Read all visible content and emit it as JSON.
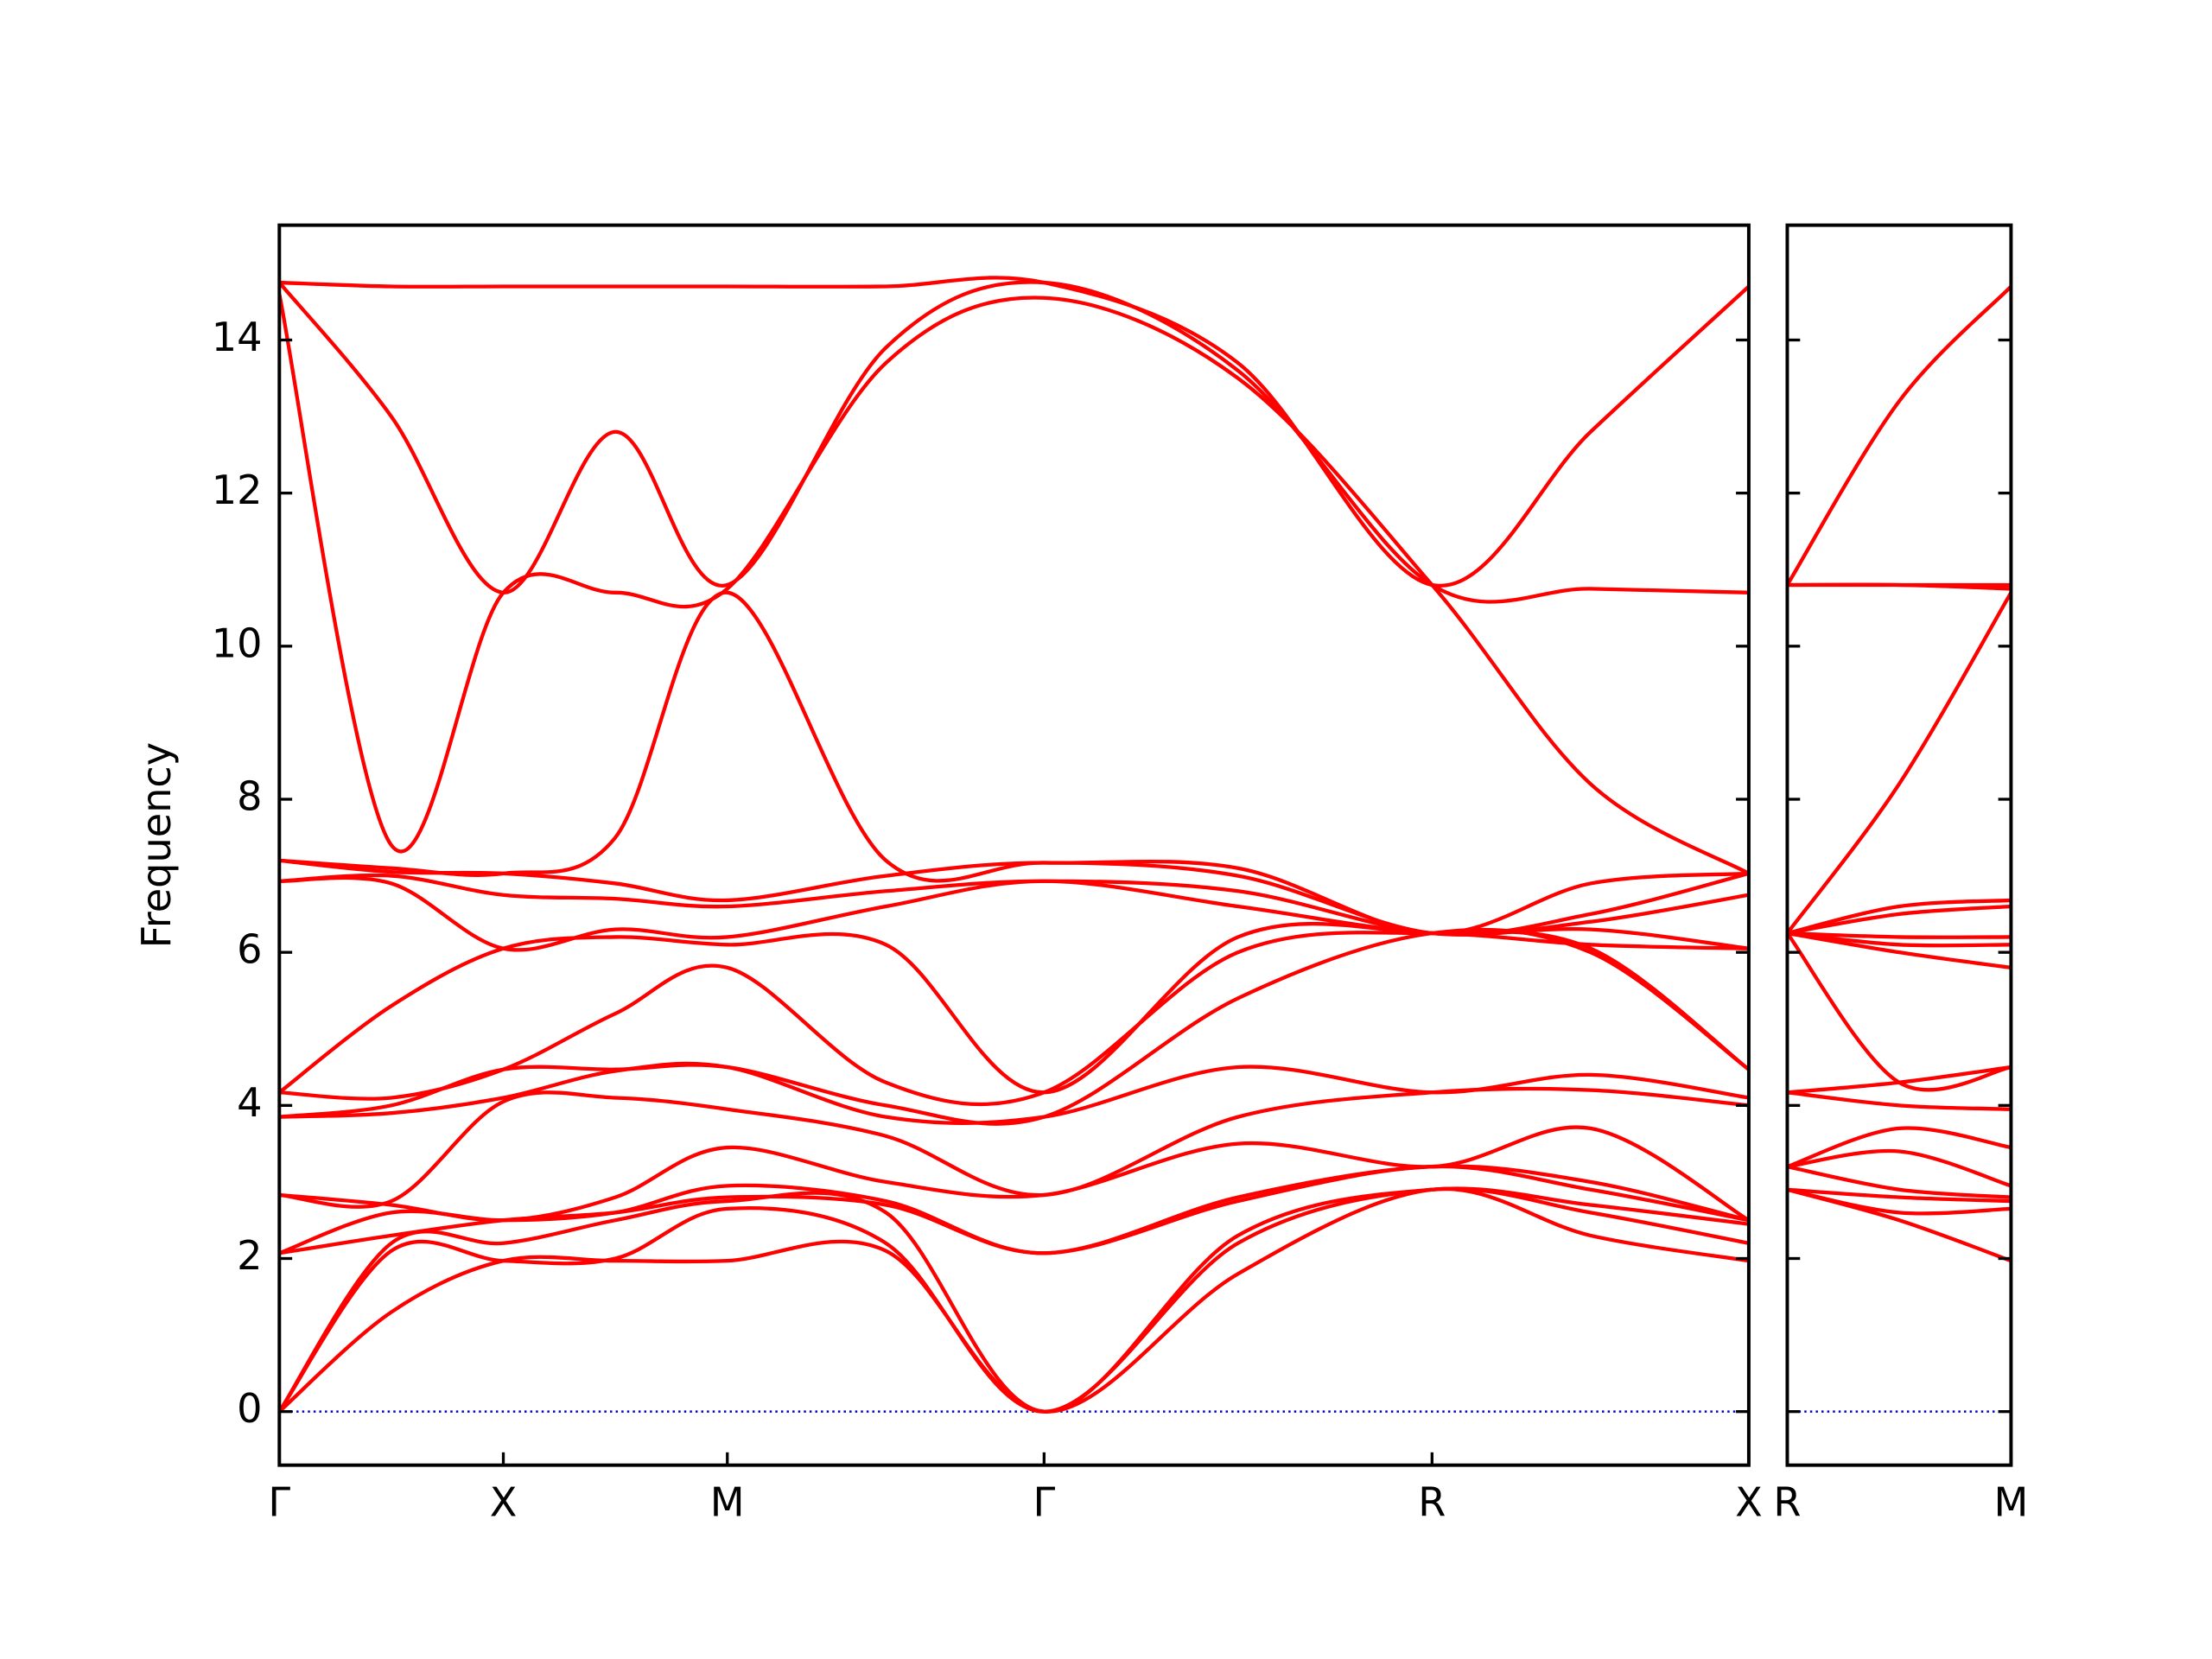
{
  "chart_data": [
    {
      "type": "line",
      "y_label": "Frequency",
      "color": "#ff0000",
      "x": [
        0,
        0.25,
        0.5,
        0.75,
        1.0,
        1.354,
        1.7071,
        2.14,
        2.5731,
        2.927,
        3.2802
      ],
      "xlim": [
        0,
        3.2802
      ],
      "xticks": [
        {
          "value": 0,
          "label": "Γ"
        },
        {
          "value": 0.5,
          "label": "X"
        },
        {
          "value": 1.0,
          "label": "M"
        },
        {
          "value": 1.7071,
          "label": "Γ"
        },
        {
          "value": 2.5731,
          "label": "R"
        },
        {
          "value": 3.2802,
          "label": "X"
        }
      ],
      "ylim": [
        -0.7,
        15.5
      ],
      "yticks": [
        0,
        2,
        4,
        6,
        8,
        10,
        12,
        14
      ],
      "ytick_labels": true,
      "hlines": [
        0
      ],
      "hline_color": "#0000cc",
      "series": [
        {
          "values": [
            0,
            1.3,
            1.97,
            1.97,
            1.97,
            2.1,
            0,
            1.8,
            2.9,
            2.3,
            1.97
          ]
        },
        {
          "values": [
            0,
            2.1,
            1.97,
            2.0,
            2.65,
            2.2,
            0,
            2.2,
            2.9,
            2.6,
            2.2
          ]
        },
        {
          "values": [
            0,
            2.2,
            2.2,
            2.5,
            2.75,
            2.6,
            0,
            2.3,
            2.9,
            2.7,
            2.45
          ]
        },
        {
          "values": [
            2.07,
            2.3,
            2.5,
            2.6,
            2.8,
            2.7,
            2.07,
            2.75,
            3.2,
            2.9,
            2.5
          ]
        },
        {
          "values": [
            2.07,
            2.6,
            2.5,
            2.6,
            2.95,
            2.75,
            2.07,
            2.8,
            3.2,
            3.0,
            2.5
          ]
        },
        {
          "values": [
            2.83,
            2.7,
            2.5,
            2.8,
            3.45,
            3.0,
            2.83,
            3.5,
            3.2,
            3.7,
            2.5
          ]
        },
        {
          "values": [
            2.83,
            2.75,
            4.05,
            4.1,
            3.95,
            3.6,
            2.83,
            3.85,
            4.17,
            4.2,
            4.0
          ]
        },
        {
          "values": [
            3.85,
            3.9,
            4.1,
            4.45,
            4.5,
            3.85,
            3.85,
            4.5,
            4.17,
            4.4,
            4.1
          ]
        },
        {
          "values": [
            3.85,
            4.0,
            4.47,
            4.47,
            4.5,
            4.0,
            3.85,
            5.4,
            6.25,
            6.0,
            4.47
          ]
        },
        {
          "values": [
            4.17,
            4.1,
            4.47,
            5.2,
            5.8,
            4.3,
            4.17,
            6.0,
            6.25,
            6.05,
            4.47
          ]
        },
        {
          "values": [
            4.17,
            5.3,
            6.05,
            6.2,
            6.1,
            6.1,
            4.17,
            6.2,
            6.25,
            6.1,
            6.05
          ]
        },
        {
          "values": [
            6.93,
            6.9,
            6.05,
            6.3,
            6.2,
            6.6,
            6.93,
            6.6,
            6.25,
            6.3,
            6.05
          ]
        },
        {
          "values": [
            6.93,
            7.0,
            6.75,
            6.7,
            6.6,
            6.8,
            6.93,
            6.8,
            6.25,
            6.4,
            6.75
          ]
        },
        {
          "values": [
            7.2,
            7.05,
            7.03,
            6.9,
            6.68,
            7.0,
            7.17,
            7.0,
            6.25,
            6.5,
            7.03
          ]
        },
        {
          "values": [
            7.2,
            7.1,
            7.03,
            7.5,
            10.7,
            7.2,
            7.17,
            7.1,
            6.25,
            6.9,
            7.03
          ]
        },
        {
          "values": [
            14.6,
            7.4,
            10.7,
            10.7,
            10.75,
            13.7,
            14.55,
            13.5,
            10.8,
            8.2,
            7.03
          ]
        },
        {
          "values": [
            14.75,
            13.0,
            10.7,
            12.8,
            10.8,
            13.9,
            14.75,
            13.6,
            10.8,
            10.75,
            10.7
          ]
        },
        {
          "values": [
            14.75,
            14.7,
            14.7,
            14.7,
            14.7,
            14.7,
            14.75,
            13.7,
            10.8,
            12.8,
            14.7
          ]
        }
      ]
    },
    {
      "type": "line",
      "color": "#ff0000",
      "x": [
        0,
        0.25,
        0.5
      ],
      "xlim": [
        0,
        0.5
      ],
      "xticks": [
        {
          "value": 0,
          "label": "R"
        },
        {
          "value": 0.5,
          "label": "M"
        }
      ],
      "ylim": [
        -0.7,
        15.5
      ],
      "yticks": [
        0,
        2,
        4,
        6,
        8,
        10,
        12,
        14
      ],
      "ytick_labels": false,
      "hlines": [
        0
      ],
      "hline_color": "#0000cc",
      "series": [
        {
          "values": [
            2.9,
            2.5,
            1.97
          ]
        },
        {
          "values": [
            2.9,
            2.6,
            2.65
          ]
        },
        {
          "values": [
            2.9,
            2.8,
            2.75
          ]
        },
        {
          "values": [
            3.2,
            2.9,
            2.8
          ]
        },
        {
          "values": [
            3.2,
            3.4,
            2.95
          ]
        },
        {
          "values": [
            3.2,
            3.7,
            3.45
          ]
        },
        {
          "values": [
            4.17,
            4.0,
            3.95
          ]
        },
        {
          "values": [
            4.17,
            4.3,
            4.5
          ]
        },
        {
          "values": [
            6.25,
            4.3,
            4.5
          ]
        },
        {
          "values": [
            6.25,
            6.0,
            5.8
          ]
        },
        {
          "values": [
            6.25,
            6.1,
            6.1
          ]
        },
        {
          "values": [
            6.25,
            6.2,
            6.2
          ]
        },
        {
          "values": [
            6.25,
            6.5,
            6.6
          ]
        },
        {
          "values": [
            6.25,
            6.6,
            6.68
          ]
        },
        {
          "values": [
            6.25,
            8.2,
            10.7
          ]
        },
        {
          "values": [
            10.8,
            10.8,
            10.75
          ]
        },
        {
          "values": [
            10.8,
            10.8,
            10.8
          ]
        },
        {
          "values": [
            10.8,
            13.2,
            14.7
          ]
        }
      ]
    }
  ]
}
